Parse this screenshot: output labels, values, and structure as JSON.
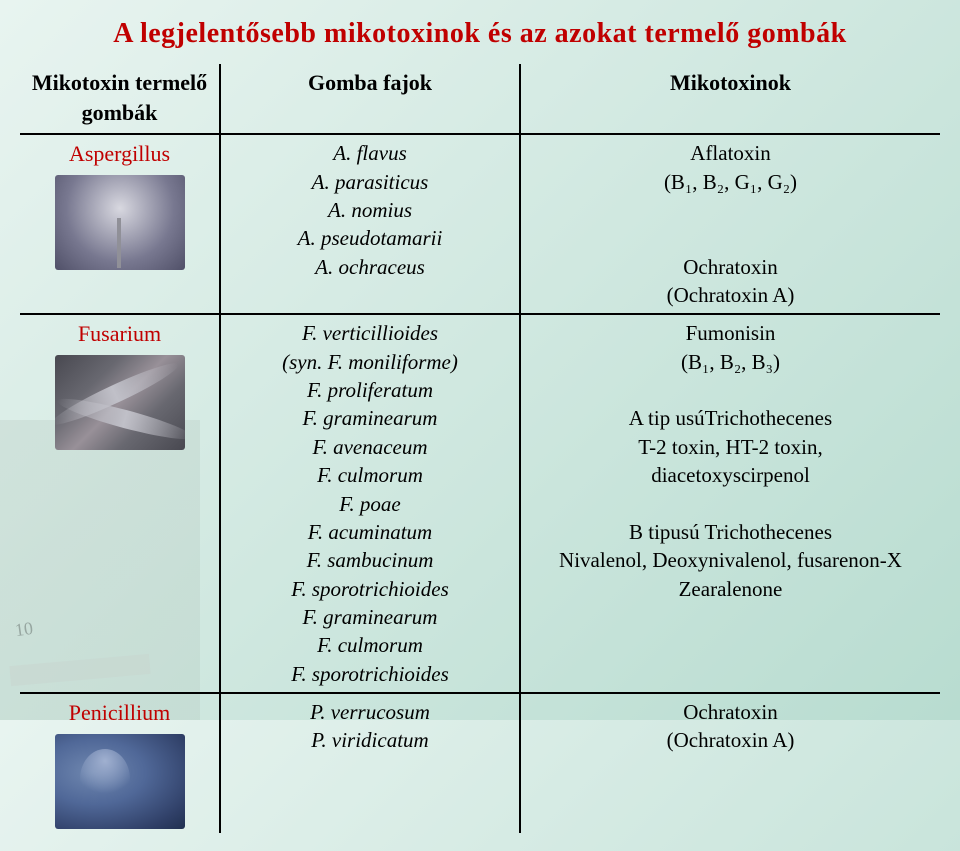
{
  "title": "A legjelentősebb mikotoxinok  és az azokat termelő gombák",
  "headers": {
    "col1": "Mikotoxin termelő gombák",
    "col2": "Gomba fajok",
    "col3": "Mikotoxinok"
  },
  "colors": {
    "title": "#c00000",
    "genus": "#c00000",
    "border": "#000000",
    "bg_gradient_start": "#e8f4f0",
    "bg_gradient_end": "#b8dcd0"
  },
  "rows": [
    {
      "genus": "Aspergillus",
      "image": "aspergillus",
      "species": [
        "A. flavus",
        "A. parasiticus",
        "A. nomius",
        "A. pseudotamarii",
        "A. ochraceus"
      ],
      "toxins_lines": [
        "Aflatoxin",
        "(B₁, B₂, G₁, G₂)",
        "",
        "",
        "Ochratoxin",
        "(Ochratoxin A)"
      ]
    },
    {
      "genus": "Fusarium",
      "image": "fusarium",
      "species": [
        "F. verticillioides",
        "(syn. F. moniliforme)",
        "F. proliferatum",
        "F. graminearum",
        "F. avenaceum",
        "F. culmorum",
        "F. poae",
        "F. acuminatum",
        "F. sambucinum",
        "F. sporotrichioides",
        "F. graminearum",
        "F. culmorum",
        "F. sporotrichioides"
      ],
      "toxins_lines": [
        "Fumonisin",
        "(B₁, B₂, B₃)",
        "",
        "A tip usúTrichothecenes",
        "T-2 toxin, HT-2 toxin,",
        "diacetoxyscirpenol",
        "",
        "B tipusú Trichothecenes",
        "Nivalenol, Deoxynivalenol, fusarenon-X",
        "Zearalenone"
      ]
    },
    {
      "genus": "Penicillium",
      "image": "penicillium",
      "species": [
        "P. verrucosum",
        "P. viridicatum"
      ],
      "toxins_lines": [
        "Ochratoxin",
        "(Ochratoxin A)"
      ]
    }
  ]
}
